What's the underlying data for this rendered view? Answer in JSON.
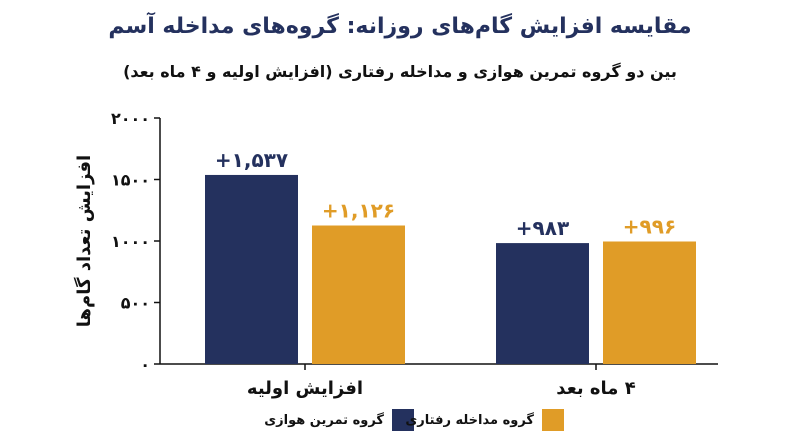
{
  "title": "مقایسه افزایش گام‌های روزانه: گروه‌های مداخله آسم",
  "subtitle": "بین دو گروه تمرین هوازی و مداخله رفتاری (افزایش اولیه و ۴ ماه بعد)",
  "colors": {
    "aerobic": "#24315e",
    "behavioral": "#e09c27",
    "title": "#24315e"
  },
  "chart_data": {
    "type": "bar",
    "title": "مقایسه افزایش گام‌های روزانه: گروه‌های مداخله آسم",
    "subtitle": "بین دو گروه تمرین هوازی و مداخله رفتاری (افزایش اولیه و ۴ ماه بعد)",
    "categories": [
      "افزایش اولیه",
      "۴ ماه بعد"
    ],
    "series": [
      {
        "name": "گروه تمرین هوازی",
        "values": [
          1537,
          983
        ],
        "labels": [
          "+۱,۵۳۷",
          "+۹۸۳"
        ],
        "color": "#24315e"
      },
      {
        "name": "گروه مداخله رفتاری",
        "values": [
          1126,
          996
        ],
        "labels": [
          "+۱,۱۲۶",
          "+۹۹۶"
        ],
        "color": "#e09c27"
      }
    ],
    "xlabel": "",
    "ylabel": "افزایش تعداد گام‌ها",
    "ylim": [
      0,
      2000
    ],
    "yticks": [
      0,
      500,
      1000,
      1500,
      2000
    ],
    "ytick_labels": [
      "۰",
      "۵۰۰",
      "۱۰۰۰",
      "۱۵۰۰",
      "۲۰۰۰"
    ],
    "legend_position": "bottom",
    "grid": false
  }
}
